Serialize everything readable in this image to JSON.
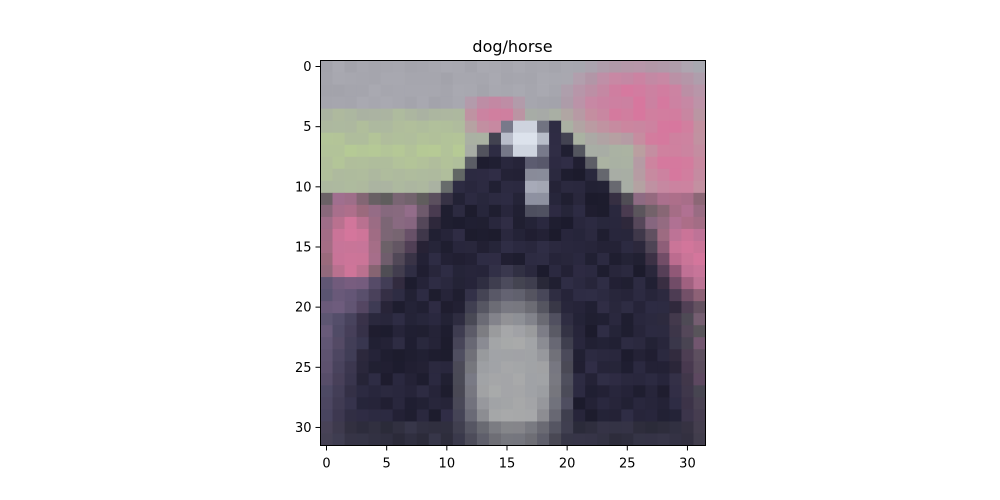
{
  "chart_data": {
    "type": "heatmap",
    "title": "dog/horse",
    "xlabel": "",
    "ylabel": "",
    "x_range": [
      -0.5,
      31.5
    ],
    "y_range": [
      31.5,
      -0.5
    ],
    "x_ticks": [
      0,
      5,
      10,
      15,
      20,
      25,
      30
    ],
    "y_ticks": [
      0,
      5,
      10,
      15,
      20,
      25,
      30
    ],
    "x_tick_labels": [
      "0",
      "5",
      "10",
      "15",
      "20",
      "25",
      "30"
    ],
    "y_tick_labels": [
      "0",
      "5",
      "10",
      "15",
      "20",
      "25",
      "30"
    ],
    "grid": false,
    "image_resolution": [
      32,
      32
    ],
    "image_content": "low-resolution 32x32 photo of a black-and-white dog in front of pink flowers",
    "colors": {
      "background": "#ffffff",
      "axes_frame": "#000000",
      "sky_grey": "#a3a3ab",
      "leaf_green": "#b8cf92",
      "flower_pink": "#d7779e",
      "dark_fur": "#1c1b2c",
      "grey_chest": "#a9aaaa",
      "white_blaze": "#dce2ec"
    }
  }
}
